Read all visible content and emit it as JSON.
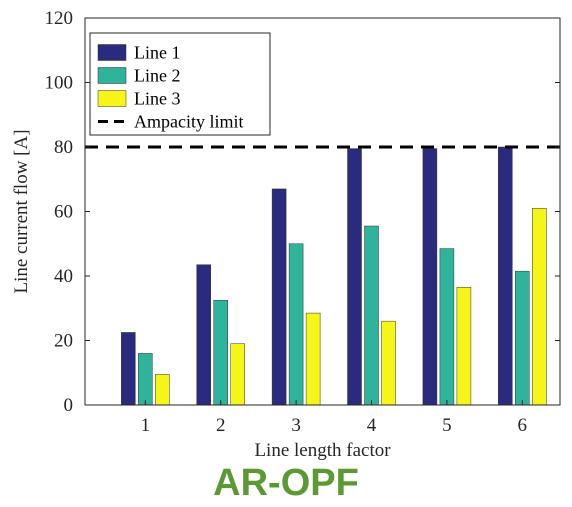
{
  "caption": "AR-OPF",
  "colors": {
    "caption": "#5b9a32",
    "axis": "#262626",
    "limit": "#000000"
  },
  "chart_data": {
    "type": "bar",
    "xlabel": "Line length factor",
    "ylabel": "Line current flow [A]",
    "categories": [
      "1",
      "2",
      "3",
      "4",
      "5",
      "6"
    ],
    "ylim": [
      0,
      120
    ],
    "yticks": [
      0,
      20,
      40,
      60,
      80,
      100,
      120
    ],
    "grid": false,
    "legend_position": "top-left",
    "series": [
      {
        "name": "Line 1",
        "color": "#2a2a7f",
        "values": [
          22.5,
          43.5,
          67,
          79.5,
          79.5,
          80
        ]
      },
      {
        "name": "Line 2",
        "color": "#2fb39a",
        "values": [
          16,
          32.5,
          50,
          55.5,
          48.5,
          41.5
        ]
      },
      {
        "name": "Line 3",
        "color": "#f5f518",
        "values": [
          9.5,
          19,
          28.5,
          26,
          36.5,
          61
        ]
      }
    ],
    "reference_line": {
      "name": "Ampacity limit",
      "value": 80,
      "style": "dashed",
      "color": "#000000"
    }
  }
}
